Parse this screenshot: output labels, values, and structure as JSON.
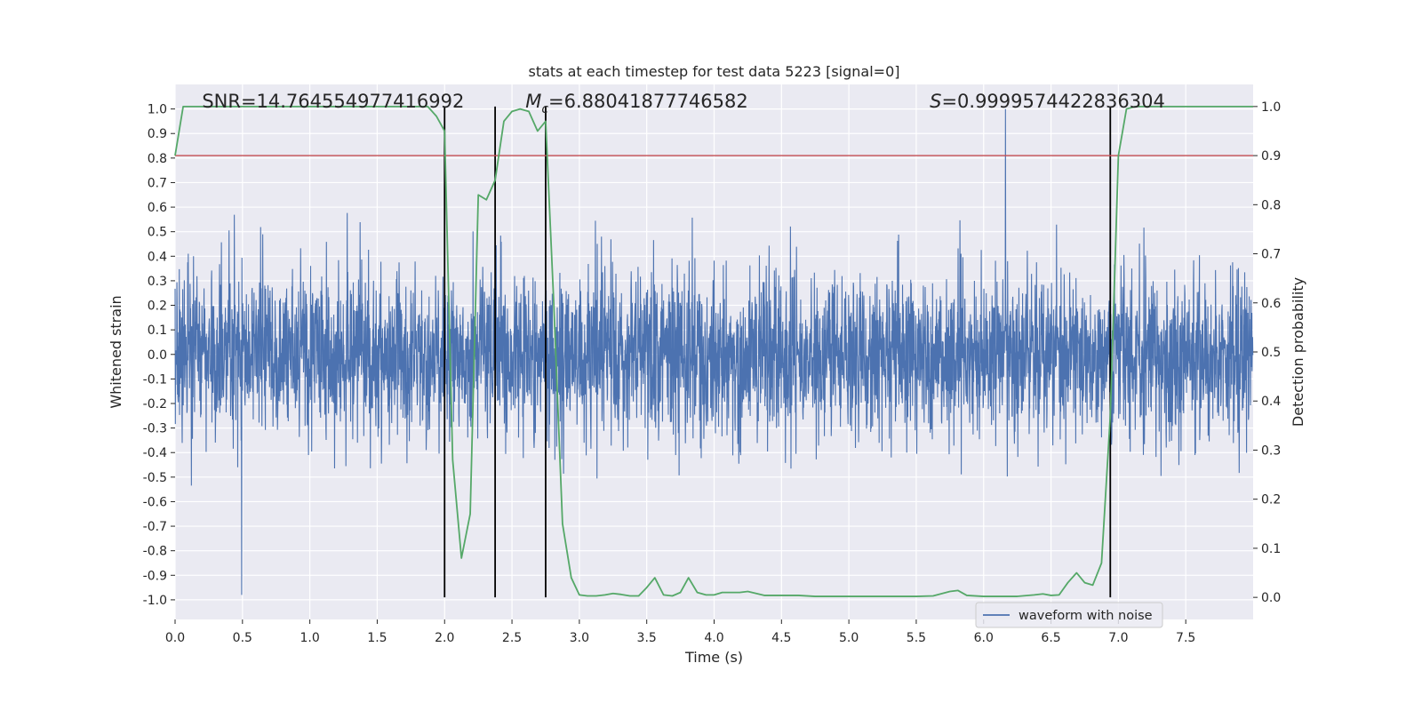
{
  "colors": {
    "plot_bg": "#eaeaf2",
    "grid": "#ffffff",
    "waveform": "#4c72b0",
    "probability": "#55a868",
    "threshold": "#c44e52",
    "markers": "#000000",
    "text": "#262626"
  },
  "chart_data": {
    "type": "line",
    "title": "stats at each timestep for test data 5223 [signal=0]",
    "xlabel": "Time (s)",
    "ylabel_left": "Whitened strain",
    "ylabel_right": "Detection probability",
    "xlim": [
      0.0,
      8.0
    ],
    "ylim_left": [
      -1.08,
      1.1
    ],
    "ylim_right": [
      -0.045,
      1.045
    ],
    "x_ticks": [
      "0.0",
      "0.5",
      "1.0",
      "1.5",
      "2.0",
      "2.5",
      "3.0",
      "3.5",
      "4.0",
      "4.5",
      "5.0",
      "5.5",
      "6.0",
      "6.5",
      "7.0",
      "7.5"
    ],
    "y_ticks_left": [
      "-1.0",
      "-0.9",
      "-0.8",
      "-0.7",
      "-0.6",
      "-0.5",
      "-0.4",
      "-0.3",
      "-0.2",
      "-0.1",
      "0.0",
      "0.1",
      "0.2",
      "0.3",
      "0.4",
      "0.5",
      "0.6",
      "0.7",
      "0.8",
      "0.9",
      "1.0"
    ],
    "y_ticks_right": [
      "0.0",
      "0.1",
      "0.2",
      "0.3",
      "0.4",
      "0.5",
      "0.6",
      "0.7",
      "0.8",
      "0.9",
      "1.0"
    ],
    "threshold_probability": 0.9,
    "vertical_markers": [
      2.0,
      2.375,
      2.75,
      6.94
    ],
    "annotations": [
      {
        "text": "SNR=14.764554977416992",
        "x": 0.2
      },
      {
        "text": "=6.88041877746582",
        "math": "M",
        "sub": "c",
        "x": 2.6
      },
      {
        "text": "=0.9999574422836304",
        "math": "S",
        "x": 5.6
      }
    ],
    "series": [
      {
        "name": "waveform with noise",
        "axis": "left",
        "kind": "noise",
        "sample_rate": 512,
        "envelope_typical": 0.4,
        "envelope_max": 1.0,
        "envelope_min": -0.98
      },
      {
        "name": "detection probability",
        "axis": "right",
        "x": [
          0.0,
          0.06,
          0.125,
          0.25,
          0.375,
          0.5,
          0.625,
          0.75,
          0.875,
          1.0,
          1.125,
          1.25,
          1.375,
          1.5,
          1.625,
          1.75,
          1.875,
          1.94,
          2.0,
          2.06,
          2.125,
          2.19,
          2.25,
          2.31,
          2.375,
          2.44,
          2.5,
          2.56,
          2.625,
          2.69,
          2.75,
          2.81,
          2.875,
          2.94,
          3.0,
          3.06,
          3.125,
          3.19,
          3.25,
          3.31,
          3.375,
          3.44,
          3.5,
          3.56,
          3.625,
          3.69,
          3.75,
          3.81,
          3.875,
          3.94,
          4.0,
          4.06,
          4.125,
          4.19,
          4.25,
          4.375,
          4.5,
          4.625,
          4.75,
          5.0,
          5.25,
          5.5,
          5.625,
          5.75,
          5.81,
          5.875,
          6.0,
          6.25,
          6.375,
          6.44,
          6.5,
          6.56,
          6.625,
          6.69,
          6.75,
          6.81,
          6.875,
          6.94,
          7.0,
          7.06,
          7.125,
          7.25,
          7.5,
          7.75,
          8.0
        ],
        "y": [
          0.9,
          1.0,
          1.0,
          1.0,
          1.0,
          1.0,
          1.0,
          1.0,
          1.0,
          1.0,
          1.0,
          1.0,
          1.0,
          1.0,
          1.0,
          1.0,
          1.0,
          0.98,
          0.95,
          0.28,
          0.08,
          0.17,
          0.82,
          0.81,
          0.85,
          0.97,
          0.99,
          0.995,
          0.99,
          0.95,
          0.97,
          0.6,
          0.15,
          0.04,
          0.005,
          0.003,
          0.003,
          0.005,
          0.008,
          0.006,
          0.003,
          0.003,
          0.02,
          0.04,
          0.005,
          0.003,
          0.01,
          0.04,
          0.01,
          0.005,
          0.005,
          0.01,
          0.01,
          0.01,
          0.012,
          0.004,
          0.004,
          0.004,
          0.002,
          0.002,
          0.002,
          0.002,
          0.003,
          0.012,
          0.014,
          0.004,
          0.002,
          0.002,
          0.005,
          0.007,
          0.004,
          0.005,
          0.03,
          0.05,
          0.03,
          0.025,
          0.07,
          0.37,
          0.9,
          0.995,
          1.0,
          1.0,
          1.0,
          1.0,
          1.0
        ]
      }
    ],
    "legend": {
      "label": "waveform with noise",
      "placement": "lower-right"
    }
  }
}
